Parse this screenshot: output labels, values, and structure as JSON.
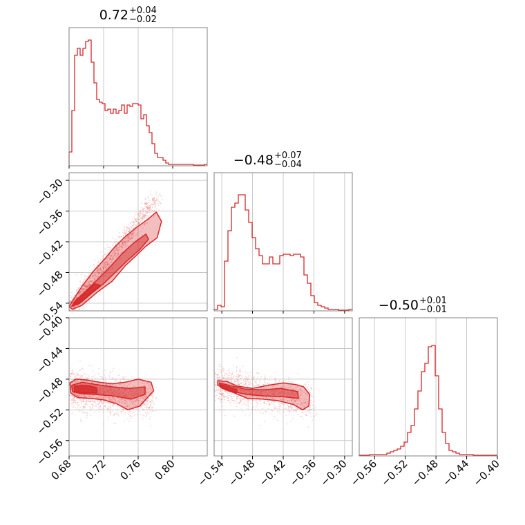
{
  "chart_data": {
    "type": "corner",
    "style": {
      "color": "#d62728",
      "grid": true
    },
    "params": [
      {
        "median": "0.72",
        "plus": "+0.04",
        "minus": "−0.02",
        "range": [
          0.68,
          0.84
        ],
        "ticks": [
          0.68,
          0.72,
          0.76,
          0.8
        ],
        "tick_labels": [
          "0.68",
          "0.72",
          "0.76",
          "0.80"
        ]
      },
      {
        "median": "−0.48",
        "plus": "+0.07",
        "minus": "−0.04",
        "range": [
          -0.555,
          -0.285
        ],
        "ticks": [
          -0.54,
          -0.48,
          -0.42,
          -0.36,
          -0.3
        ],
        "tick_labels": [
          "−0.54",
          "−0.48",
          "−0.42",
          "−0.36",
          "−0.30"
        ]
      },
      {
        "median": "−0.50",
        "plus": "+0.01",
        "minus": "−0.01",
        "range": [
          -0.58,
          -0.4
        ],
        "ticks": [
          -0.56,
          -0.52,
          -0.48,
          -0.44,
          -0.4
        ],
        "y_ticks": [
          -0.4,
          -0.44,
          -0.48,
          -0.52,
          -0.56
        ],
        "tick_labels": [
          "−0.56",
          "−0.52",
          "−0.48",
          "−0.44",
          "−0.40"
        ],
        "y_tick_labels": [
          "−0.40",
          "−0.44",
          "−0.48",
          "−0.52",
          "−0.56"
        ]
      }
    ],
    "hist": [
      [
        0.1,
        0.4,
        0.8,
        0.85,
        0.8,
        0.85,
        0.9,
        0.91,
        0.75,
        0.6,
        0.48,
        0.46,
        0.45,
        0.4,
        0.41,
        0.38,
        0.41,
        0.38,
        0.4,
        0.44,
        0.38,
        0.44,
        0.43,
        0.45,
        0.45,
        0.44,
        0.34,
        0.37,
        0.29,
        0.24,
        0.16,
        0.09,
        0.06,
        0.06,
        0.04,
        0.02,
        0.01,
        0.01,
        0.01,
        0.01,
        0.01,
        0.01,
        0.01,
        0.01,
        0.01,
        0.005,
        0.005,
        0.005,
        0.005,
        0.01
      ],
      [
        0.01,
        0.04,
        0.03,
        0.36,
        0.58,
        0.75,
        0.78,
        0.84,
        0.84,
        0.73,
        0.64,
        0.53,
        0.45,
        0.4,
        0.34,
        0.34,
        0.39,
        0.34,
        0.34,
        0.4,
        0.41,
        0.41,
        0.4,
        0.41,
        0.41,
        0.39,
        0.26,
        0.2,
        0.11,
        0.06,
        0.04,
        0.03,
        0.02,
        0.01,
        0.01,
        0.01,
        0.005,
        0.005,
        0.005,
        0.01
      ],
      [
        0.005,
        0.005,
        0.005,
        0.01,
        0.01,
        0.01,
        0.01,
        0.01,
        0.02,
        0.03,
        0.04,
        0.05,
        0.07,
        0.1,
        0.17,
        0.22,
        0.34,
        0.47,
        0.61,
        0.67,
        0.79,
        0.8,
        0.58,
        0.34,
        0.17,
        0.09,
        0.04,
        0.03,
        0.02,
        0.01,
        0.01,
        0.01,
        0.01,
        0.005,
        0.005,
        0.005,
        0.005,
        0.005,
        0.005,
        0.005
      ]
    ]
  }
}
